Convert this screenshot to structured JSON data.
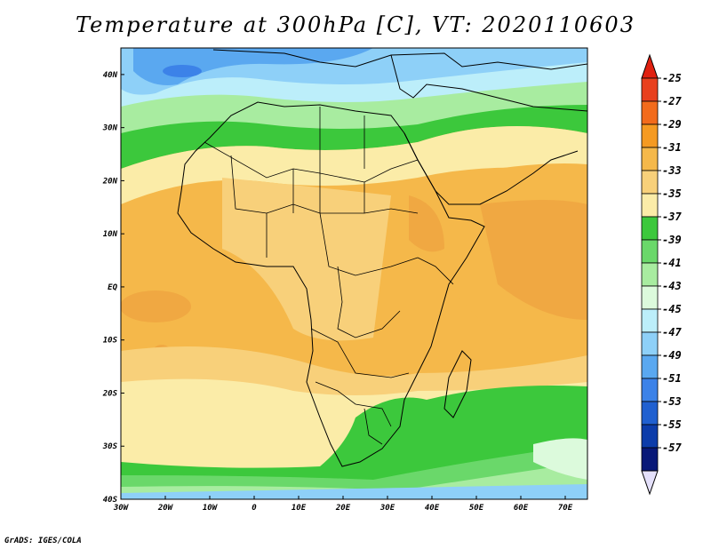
{
  "title": "Temperature at 300hPa [C], VT: 2020110603",
  "credit": "GrADS: IGES/COLA",
  "map": {
    "region": "Africa",
    "lon_range": [
      -30,
      75
    ],
    "lat_range": [
      -40,
      45
    ],
    "lat_labels": [
      "40N",
      "30N",
      "20N",
      "10N",
      "EQ",
      "10S",
      "20S",
      "30S",
      "40S"
    ],
    "lon_labels": [
      "30W",
      "20W",
      "10W",
      "0",
      "10E",
      "20E",
      "30E",
      "40E",
      "50E",
      "60E",
      "70E"
    ],
    "features": [
      "coastlines",
      "country-borders"
    ]
  },
  "colorbar": {
    "labels": [
      "-25",
      "-27",
      "-29",
      "-31",
      "-33",
      "-35",
      "-37",
      "-39",
      "-41",
      "-43",
      "-45",
      "-47",
      "-49",
      "-51",
      "-53",
      "-55",
      "-57"
    ],
    "colors": [
      "#e8401e",
      "#f26b1c",
      "#f59a22",
      "#f5b84a",
      "#f8d07a",
      "#fbeca8",
      "#3cc83c",
      "#6ad86a",
      "#a8eca0",
      "#dcfadc",
      "#bceefa",
      "#8ed0f8",
      "#5aa8f0",
      "#3c82e8",
      "#2060d0",
      "#0c3caa",
      "#081878"
    ],
    "top_arrow_color": "#e02010",
    "bottom_arrow_color": "#e4e0fa"
  }
}
